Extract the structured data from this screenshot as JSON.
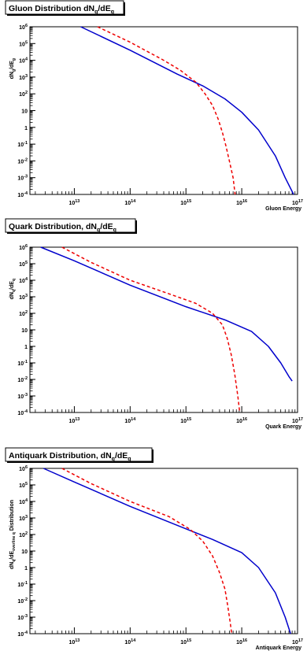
{
  "chart_data": [
    {
      "type": "line",
      "title": "Gluon Distribution dN_g/dE_g",
      "title_main": "Gluon Distribution dN",
      "title_sub1": "g",
      "title_mid": "/dE",
      "title_sub2": "g",
      "xlabel": "Gluon Energy",
      "ylabel_main": "dN",
      "ylabel_sub1": "g",
      "ylabel_mid": "/dE",
      "ylabel_sub2": "g",
      "ylabel_tail": "",
      "x_scale": "log",
      "y_scale": "log",
      "xlim": [
        1600000000000.0,
        1e+17
      ],
      "ylim": [
        0.0001,
        1000000.0
      ],
      "x_tick_labels": [
        "10^13",
        "10^14",
        "10^15",
        "10^16",
        "10^17"
      ],
      "y_tick_labels": [
        "10^-4",
        "10^-3",
        "10^-2",
        "10^-1",
        "1",
        "10",
        "10^2",
        "10^3",
        "10^4",
        "10^5",
        "10^6"
      ],
      "grid": false,
      "series": [
        {
          "color": "#0000cc",
          "style": "solid",
          "x": [
            13000000000000.0,
            100000000000000.0,
            700000000000000.0,
            2000000000000000.0,
            5000000000000000.0,
            1e+16,
            2e+16,
            4e+16,
            6e+16,
            8.5e+16
          ],
          "y": [
            1000000.0,
            40000.0,
            1500.0,
            300,
            50,
            8,
            0.7,
            0.02,
            0.001,
            0.0001
          ]
        },
        {
          "color": "#ee0000",
          "style": "dashed",
          "x": [
            26000000000000.0,
            100000000000000.0,
            400000000000000.0,
            800000000000000.0,
            1500000000000000.0,
            2200000000000000.0,
            3000000000000000.0,
            3800000000000000.0,
            4500000000000000.0,
            5200000000000000.0,
            6000000000000000.0,
            7000000000000000.0,
            7600000000000000.0
          ],
          "y": [
            1000000.0,
            120000.0,
            10000.0,
            2500.0,
            500,
            100,
            20,
            3,
            0.5,
            0.08,
            0.01,
            0.001,
            0.0001
          ]
        }
      ]
    },
    {
      "type": "line",
      "title": "Quark Distribution, dN_q/dE_q",
      "title_main": "Quark Distribution, dN",
      "title_sub1": "q",
      "title_mid": "/dE",
      "title_sub2": "q",
      "xlabel": "Quark Energy",
      "ylabel_main": "dN",
      "ylabel_sub1": "q",
      "ylabel_mid": "/dE",
      "ylabel_sub2": "q",
      "ylabel_tail": "",
      "x_scale": "log",
      "y_scale": "log",
      "xlim": [
        1600000000000.0,
        1e+17
      ],
      "ylim": [
        0.0001,
        1000000.0
      ],
      "x_tick_labels": [
        "10^13",
        "10^14",
        "10^15",
        "10^16",
        "10^17"
      ],
      "y_tick_labels": [
        "10^-4",
        "10^-3",
        "10^-2",
        "10^-1",
        "1",
        "10",
        "10^2",
        "10^3",
        "10^4",
        "10^5",
        "10^6"
      ],
      "grid": false,
      "series": [
        {
          "color": "#0000cc",
          "style": "solid",
          "x": [
            2500000000000.0,
            10000000000000.0,
            100000000000000.0,
            1000000000000000.0,
            5000000000000000.0,
            1.5e+16,
            3e+16,
            5e+16,
            7e+16,
            8e+16
          ],
          "y": [
            1000000.0,
            150000.0,
            5000.0,
            250,
            40,
            8,
            1,
            0.1,
            0.015,
            0.008
          ]
        },
        {
          "color": "#ee0000",
          "style": "dashed",
          "x": [
            6000000000000.0,
            20000000000000.0,
            100000000000000.0,
            500000000000000.0,
            1500000000000000.0,
            3000000000000000.0,
            4500000000000000.0,
            5500000000000000.0,
            6500000000000000.0,
            7500000000000000.0,
            8500000000000000.0,
            9200000000000000.0
          ],
          "y": [
            1000000.0,
            120000.0,
            10000.0,
            1500.0,
            400,
            100,
            20,
            3,
            0.3,
            0.02,
            0.001,
            0.0001
          ]
        }
      ]
    },
    {
      "type": "line",
      "title": "Antiquark Distribution, dN_q/dE_q",
      "title_main": "Antiquark Distribution, dN",
      "title_sub1": "q",
      "title_mid": "/dE",
      "title_sub2": "q",
      "xlabel": "Antiquark Energy",
      "ylabel_main": "dN",
      "ylabel_sub1": "q",
      "ylabel_mid": "/dE",
      "ylabel_sub2": "overline q",
      "ylabel_tail": " Distribution",
      "x_scale": "log",
      "y_scale": "log",
      "xlim": [
        1600000000000.0,
        1e+17
      ],
      "ylim": [
        0.0001,
        1000000.0
      ],
      "x_tick_labels": [
        "10^13",
        "10^14",
        "10^15",
        "10^16",
        "10^17"
      ],
      "y_tick_labels": [
        "10^-4",
        "10^-3",
        "10^-2",
        "10^-1",
        "1",
        "10",
        "10^2",
        "10^3",
        "10^4",
        "10^5",
        "10^6"
      ],
      "grid": false,
      "series": [
        {
          "color": "#0000cc",
          "style": "solid",
          "x": [
            2800000000000.0,
            10000000000000.0,
            100000000000000.0,
            1000000000000000.0,
            3000000000000000.0,
            1e+16,
            2e+16,
            4e+16,
            6e+16,
            7.5e+16
          ],
          "y": [
            1000000.0,
            150000.0,
            5000.0,
            220,
            50,
            8,
            1,
            0.03,
            0.001,
            0.0001
          ]
        },
        {
          "color": "#ee0000",
          "style": "dashed",
          "x": [
            6000000000000.0,
            20000000000000.0,
            100000000000000.0,
            500000000000000.0,
            1200000000000000.0,
            2000000000000000.0,
            3000000000000000.0,
            4000000000000000.0,
            5000000000000000.0,
            5600000000000000.0,
            6200000000000000.0,
            6600000000000000.0
          ],
          "y": [
            1000000.0,
            120000.0,
            10000.0,
            1200.0,
            200,
            40,
            5,
            0.5,
            0.05,
            0.005,
            0.0005,
            0.0001
          ]
        }
      ]
    }
  ]
}
